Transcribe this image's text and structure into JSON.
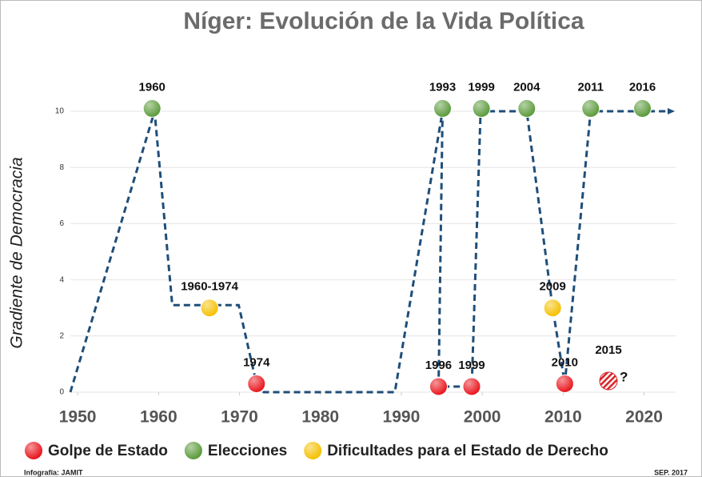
{
  "chart_data": {
    "type": "timeline",
    "title": "Níger: Evolución  de la Vida Política",
    "y_label": "Gradiente  de  Democracia",
    "xlim": [
      1949.1,
      2023.9
    ],
    "xticks": [
      1950,
      1960,
      1970,
      1980,
      1990,
      2000,
      2010,
      2020
    ],
    "ylim": [
      0,
      10.5
    ],
    "yticks": [
      0,
      2,
      4,
      6,
      8,
      10
    ],
    "grid": true,
    "trend": {
      "color": "#1f4e79",
      "x": [
        1949.1,
        1959.5,
        1961.7,
        1969.9,
        1972.1,
        1973,
        1989.2,
        1995.1,
        1994.6,
        1998.7,
        1999.8,
        2005.5,
        2008.7,
        2010.2,
        2013.4,
        2023.5
      ],
      "values": [
        0,
        10,
        3.1,
        3.1,
        0.3,
        0,
        0,
        10,
        0.2,
        0.2,
        10,
        10,
        3.0,
        0.3,
        10,
        10
      ]
    },
    "series": [
      {
        "name": "Golpe de Estado",
        "color": "#e8141b",
        "x": [
          1972.1,
          1994.6,
          1998.7,
          2010.2
        ],
        "values": [
          0.3,
          0.2,
          0.2,
          0.3
        ],
        "labels": [
          "1974",
          "1996",
          "1999",
          "2010"
        ]
      },
      {
        "name": "Elecciones",
        "color": "#5a9a3a",
        "x": [
          1959.2,
          1995.1,
          1999.9,
          2005.5,
          2013.4,
          2019.8
        ],
        "values": [
          10.1,
          10.1,
          10.1,
          10.1,
          10.1,
          10.1
        ],
        "labels": [
          "1960",
          "1993",
          "1999",
          "2004",
          "2011",
          "2016"
        ]
      },
      {
        "name": "Dificultades para el Estado de Derecho",
        "color": "#f5c000",
        "x": [
          1966.3,
          2008.7
        ],
        "values": [
          3.0,
          3.0
        ],
        "labels": [
          "1960-1974",
          "2009"
        ]
      }
    ],
    "uncertain": {
      "label": "2015",
      "x": 2015.6,
      "y": 0.4,
      "note": "?",
      "color": "#d9262b"
    },
    "footer_left": "Infografía: JAMIT",
    "footer_right": "SEP. 2017"
  }
}
